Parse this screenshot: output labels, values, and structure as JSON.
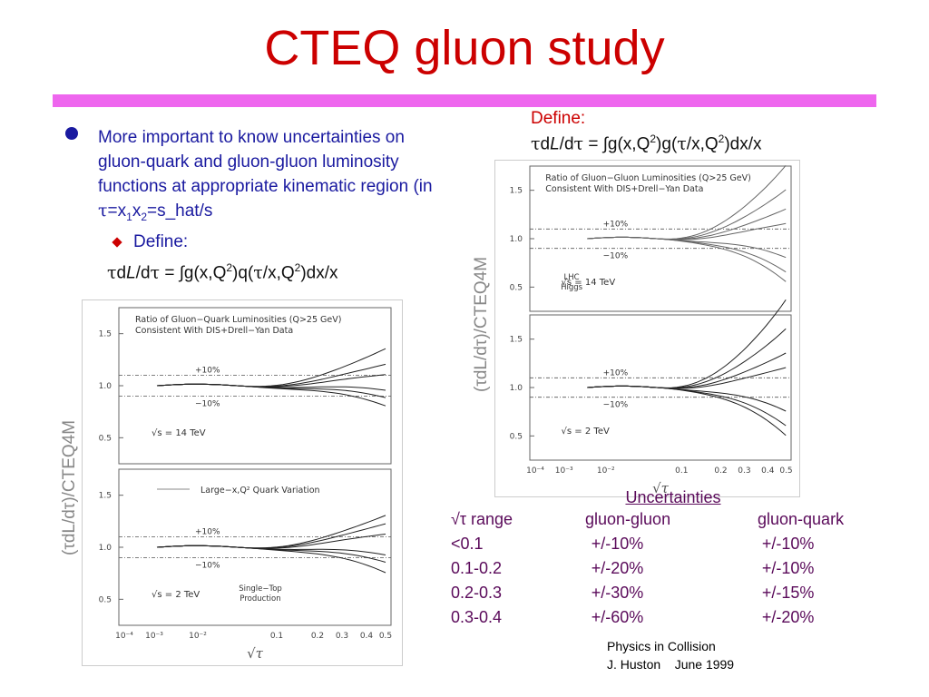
{
  "title": "CTEQ gluon study",
  "bullet": {
    "text": "More important to know uncertainties on gluon-quark and gluon-gluon luminosity functions at  appropriate kinematic region (in ",
    "tau_expr": "τ=x1x2=s_hat/s"
  },
  "sub_define": "Define:",
  "left_formula": "τdL/dτ = ∫g(x,Q²)q(τ/x,Q²)dx/x",
  "right_define": "Define:",
  "right_formula": "τdL/dτ = ∫g(x,Q²)g(τ/x,Q²)dx/x",
  "left_figure": {
    "ylabel": "(τdL/dτ)/CTEQ4M",
    "xlabel": "√τ",
    "xticks": [
      "10⁻⁴",
      "10⁻³",
      "10⁻²",
      "0.1",
      "0.2",
      "0.3",
      "0.4",
      "0.5"
    ],
    "yticks": [
      "1.5",
      "1.0",
      "0.5"
    ],
    "top_panel": {
      "title1": "Ratio of Gluon−Quark Luminosities (Q>25 GeV)",
      "title2": "Consistent With DIS+Drell−Yan Data",
      "plus": "+10%",
      "minus": "−10%",
      "energy": "√s = 14 TeV"
    },
    "bottom_panel": {
      "legend": "Large−x,Q² Quark Variation",
      "plus": "+10%",
      "minus": "−10%",
      "energy": "√s = 2 TeV",
      "note1": "Single−Top",
      "note2": "Production"
    }
  },
  "right_figure": {
    "ylabel": "(τdL/dτ)/CTEQ4M",
    "xlabel": "√τ",
    "xticks": [
      "10⁻⁴",
      "10⁻³",
      "10⁻²",
      "0.1",
      "0.2",
      "0.3",
      "0.4",
      "0.5"
    ],
    "yticks": [
      "1.5",
      "1.0",
      "0.5"
    ],
    "top_panel": {
      "title1": "Ratio of Gluon−Gluon Luminosities (Q>25 GeV)",
      "title2": "Consistent With DIS+Drell−Yan Data",
      "plus": "+10%",
      "minus": "−10%",
      "energy": "√s = 14 TeV",
      "note1": "LHC",
      "note2": "Higgs"
    },
    "bottom_panel": {
      "plus": "+10%",
      "minus": "−10%",
      "energy": "√s = 2 TeV"
    }
  },
  "table": {
    "heading": "Uncertainties",
    "headers": [
      "√τ range",
      "gluon-gluon",
      "gluon-quark"
    ],
    "rows": [
      [
        "<0.1",
        "+/-10%",
        "+/-10%"
      ],
      [
        "0.1-0.2",
        "+/-20%",
        "+/-10%"
      ],
      [
        "0.2-0.3",
        "+/-30%",
        "+/-15%"
      ],
      [
        "0.3-0.4",
        "+/-60%",
        "+/-20%"
      ]
    ]
  },
  "footer": {
    "line1": "Physics in Collision",
    "line2": "J. Huston    June 1999"
  },
  "colors": {
    "title": "#cc0000",
    "bar": "#ee66ee",
    "text": "#1a1aa0",
    "table": "#5a0a5a"
  }
}
